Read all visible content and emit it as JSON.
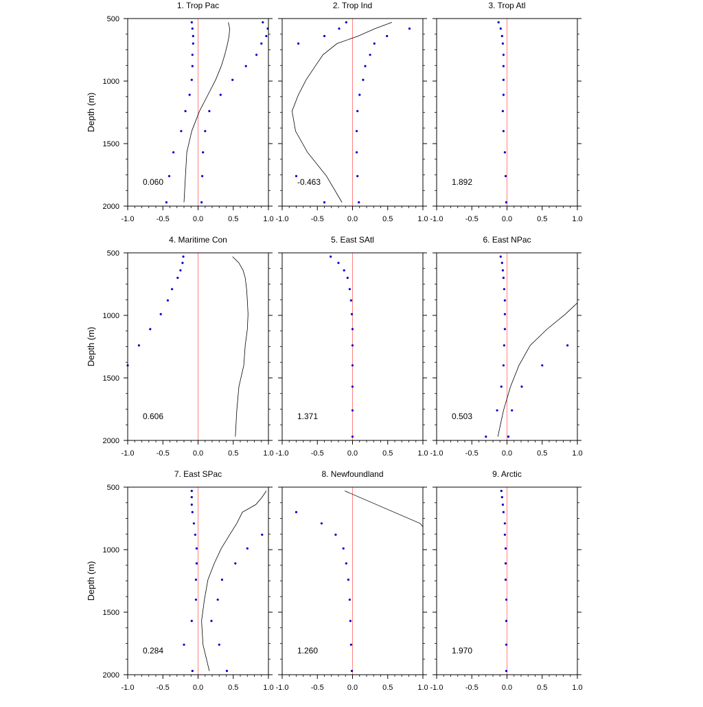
{
  "chart_data": {
    "type": "scatter",
    "ylabel": "Depth (m)",
    "xlim": [
      -1.0,
      1.0
    ],
    "ylim": [
      500,
      2000
    ],
    "y_inverted": true,
    "x_ticks": [
      "-1.0",
      "-0.5",
      "0.0",
      "0.5",
      "1.0"
    ],
    "y_ticks": [
      "500",
      "1000",
      "1500",
      "2000"
    ],
    "colors": {
      "zero_line": "#ff8080",
      "points": "#0000cc",
      "profile_line": "#000000"
    },
    "panels": [
      {
        "title": "1. Trop Pac",
        "value": "0.060",
        "depths_a": [
          530,
          580,
          640,
          700,
          790,
          880,
          990,
          1110,
          1240,
          1400,
          1570,
          1760,
          1970
        ],
        "points_a": [
          -0.09,
          -0.08,
          -0.07,
          -0.07,
          -0.08,
          -0.08,
          -0.09,
          -0.12,
          -0.18,
          -0.24,
          -0.35,
          -0.41,
          -0.45
        ],
        "depths_b": [
          530,
          580,
          640,
          700,
          790,
          880,
          990,
          1110,
          1240,
          1400,
          1570,
          1760,
          1970
        ],
        "points_b": [
          0.92,
          0.99,
          0.97,
          0.9,
          0.83,
          0.68,
          0.49,
          0.32,
          0.16,
          0.1,
          0.07,
          0.06,
          0.05
        ],
        "line_depth": [
          530,
          580,
          640,
          700,
          790,
          880,
          990,
          1110,
          1240,
          1400,
          1570,
          1760,
          1970
        ],
        "line_x": [
          0.43,
          0.45,
          0.44,
          0.42,
          0.38,
          0.33,
          0.25,
          0.14,
          0.02,
          -0.09,
          -0.16,
          -0.18,
          -0.2
        ]
      },
      {
        "title": "2. Trop Ind",
        "value": "-0.463",
        "depths_a": [
          530,
          580,
          640,
          700
        ],
        "points_a": [
          -0.09,
          -0.19,
          -0.4,
          -0.77
        ],
        "depths_b": [
          580,
          640,
          700,
          790,
          880,
          990,
          1110,
          1240,
          1400,
          1570,
          1760,
          1970
        ],
        "points_b": [
          0.81,
          0.49,
          0.31,
          0.25,
          0.18,
          0.15,
          0.1,
          0.07,
          0.06,
          0.06,
          0.07,
          0.09
        ],
        "extra_depths": [
          1760,
          1970
        ],
        "extra_points": [
          -0.8,
          -0.4
        ],
        "line_depth": [
          530,
          580,
          640,
          700,
          790,
          880,
          990,
          1110,
          1240,
          1400,
          1570,
          1760,
          1970
        ],
        "line_x": [
          0.56,
          0.32,
          0.08,
          -0.22,
          -0.42,
          -0.53,
          -0.66,
          -0.77,
          -0.86,
          -0.81,
          -0.64,
          -0.37,
          -0.15
        ]
      },
      {
        "title": "3. Trop Atl",
        "value": "1.892",
        "depths_a": [
          530,
          580,
          640,
          700,
          790,
          880,
          990,
          1110,
          1240,
          1400,
          1570,
          1760,
          1970
        ],
        "points_a": [
          -0.12,
          -0.09,
          -0.07,
          -0.06,
          -0.05,
          -0.05,
          -0.05,
          -0.05,
          -0.06,
          -0.05,
          -0.03,
          -0.02,
          -0.01
        ],
        "depths_b": [],
        "points_b": [],
        "line_depth": [],
        "line_x": []
      },
      {
        "title": "4. Maritime Con",
        "value": "0.606",
        "depths_a": [
          530,
          580,
          640,
          700,
          790,
          880,
          990,
          1110,
          1240,
          1400
        ],
        "points_a": [
          -0.21,
          -0.22,
          -0.25,
          -0.29,
          -0.37,
          -0.43,
          -0.53,
          -0.68,
          -0.84,
          -1.0
        ],
        "depths_b": [],
        "points_b": [],
        "line_depth": [
          530,
          580,
          640,
          700,
          790,
          880,
          990,
          1110,
          1240,
          1400,
          1570,
          1760,
          1970
        ],
        "line_x": [
          0.49,
          0.58,
          0.64,
          0.67,
          0.69,
          0.7,
          0.71,
          0.7,
          0.67,
          0.65,
          0.58,
          0.55,
          0.53
        ]
      },
      {
        "title": "5. East SAtl",
        "value": "1.371",
        "depths_a": [
          530,
          580,
          640,
          700,
          790,
          880,
          990,
          1110,
          1240,
          1400,
          1570,
          1760,
          1970
        ],
        "points_a": [
          -0.31,
          -0.2,
          -0.12,
          -0.07,
          -0.04,
          -0.02,
          -0.01,
          0.0,
          0.0,
          0.0,
          0.0,
          0.0,
          0.0
        ],
        "depths_b": [],
        "points_b": [],
        "line_depth": [],
        "line_x": []
      },
      {
        "title": "6. East NPac",
        "value": "0.503",
        "depths_a": [
          530,
          580,
          640,
          700,
          790,
          880,
          990,
          1110,
          1240,
          1400,
          1570,
          1760,
          1970
        ],
        "points_a": [
          -0.09,
          -0.07,
          -0.06,
          -0.05,
          -0.04,
          -0.03,
          -0.03,
          -0.03,
          -0.04,
          -0.05,
          -0.08,
          -0.14,
          -0.3
        ],
        "depths_b": [
          1240,
          1400,
          1570,
          1760,
          1970
        ],
        "points_b": [
          0.86,
          0.5,
          0.21,
          0.07,
          0.02
        ],
        "line_depth": [
          900,
          990,
          1110,
          1240,
          1400,
          1570,
          1760,
          1970
        ],
        "line_x": [
          1.0,
          0.83,
          0.57,
          0.33,
          0.17,
          0.05,
          -0.05,
          -0.13
        ]
      },
      {
        "title": "7. East SPac",
        "value": "0.284",
        "depths_a": [
          530,
          580,
          640,
          700,
          790,
          880,
          990,
          1110,
          1240,
          1400,
          1570,
          1760,
          1970
        ],
        "points_a": [
          -0.09,
          -0.09,
          -0.09,
          -0.08,
          -0.06,
          -0.04,
          -0.02,
          -0.02,
          -0.03,
          -0.03,
          -0.09,
          -0.2,
          -0.08
        ],
        "depths_b": [
          880,
          990,
          1110,
          1240,
          1400,
          1570,
          1760,
          1970
        ],
        "points_b": [
          0.91,
          0.7,
          0.53,
          0.34,
          0.28,
          0.19,
          0.3,
          0.41
        ],
        "line_depth": [
          530,
          580,
          640,
          700,
          790,
          880,
          990,
          1110,
          1240,
          1400,
          1570,
          1760,
          1970
        ],
        "line_x": [
          0.97,
          0.91,
          0.82,
          0.63,
          0.55,
          0.45,
          0.33,
          0.23,
          0.14,
          0.09,
          0.05,
          0.07,
          0.16
        ]
      },
      {
        "title": "8. Newfoundland",
        "value": "1.260",
        "depths_a": [
          700,
          790,
          880,
          990,
          1110,
          1240,
          1400,
          1570,
          1760,
          1970
        ],
        "points_a": [
          -0.8,
          -0.44,
          -0.24,
          -0.13,
          -0.09,
          -0.06,
          -0.04,
          -0.03,
          -0.02,
          -0.01
        ],
        "depths_b": [],
        "points_b": [],
        "line_depth": [
          530,
          790,
          830
        ],
        "line_x": [
          -0.11,
          0.96,
          1.02
        ]
      },
      {
        "title": "9. Arctic",
        "value": "1.970",
        "depths_a": [
          530,
          580,
          640,
          700,
          790,
          880,
          990,
          1110,
          1240,
          1400,
          1570,
          1760,
          1970
        ],
        "points_a": [
          -0.08,
          -0.07,
          -0.06,
          -0.05,
          -0.03,
          -0.03,
          -0.02,
          -0.02,
          -0.02,
          -0.01,
          -0.01,
          -0.01,
          -0.01
        ],
        "depths_b": [],
        "points_b": [],
        "line_depth": [],
        "line_x": []
      }
    ]
  }
}
